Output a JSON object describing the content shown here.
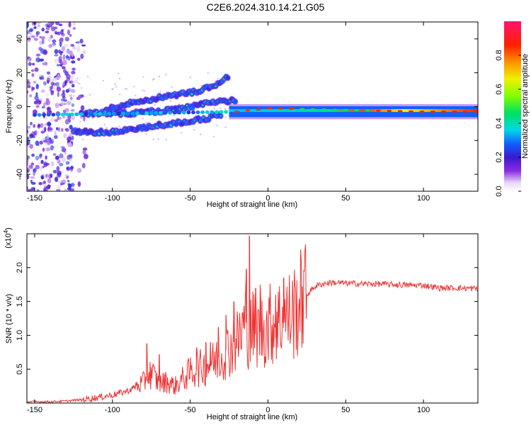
{
  "title": "C2E6.2024.310.14.21.G05",
  "chart_data": [
    {
      "type": "heatmap",
      "name": "spectrogram",
      "xlabel": "Height of straight line (km)",
      "ylabel": "Frequency (Hz)",
      "xlim": [
        -155,
        135
      ],
      "ylim": [
        -50,
        50
      ],
      "xticks": [
        -150,
        -100,
        -50,
        0,
        50,
        100
      ],
      "yticks": [
        -40,
        -20,
        0,
        20,
        40
      ],
      "colorbar": {
        "label": "Normalized spectral amplitude",
        "range": [
          0,
          1
        ],
        "ticks": [
          0.0,
          0.2,
          0.4,
          0.6,
          0.8
        ]
      },
      "features": [
        {
          "name": "noise cloud",
          "x": [
            -155,
            -125
          ],
          "y": [
            -50,
            50
          ],
          "amp": 0.1
        },
        {
          "name": "upper branch",
          "points": [
            [
              -105,
              -2
            ],
            [
              -85,
              3
            ],
            [
              -65,
              6
            ],
            [
              -45,
              9
            ],
            [
              -35,
              12
            ],
            [
              -25,
              18
            ]
          ],
          "amp": 0.35
        },
        {
          "name": "middle branch",
          "points": [
            [
              -120,
              -4
            ],
            [
              -90,
              -4
            ],
            [
              -60,
              -2
            ],
            [
              -40,
              2
            ],
            [
              -20,
              4
            ]
          ],
          "amp": 0.45
        },
        {
          "name": "lower branch",
          "points": [
            [
              -125,
              -15
            ],
            [
              -100,
              -15
            ],
            [
              -70,
              -11
            ],
            [
              -45,
              -8
            ],
            [
              -30,
              -5
            ]
          ],
          "amp": 0.35
        },
        {
          "name": "main line",
          "points": [
            [
              -155,
              -5
            ],
            [
              -20,
              -3
            ],
            [
              0,
              -1
            ],
            [
              50,
              -2
            ],
            [
              100,
              -3
            ],
            [
              135,
              -3
            ]
          ],
          "amp": 0.9
        }
      ]
    },
    {
      "type": "line",
      "name": "snr",
      "xlabel": "Height of straight line (km)",
      "ylabel": "SNR (10 * v/v)",
      "yscale_label": "(x10",
      "yscale_exp": "4",
      "color": "#ee3333",
      "xlim": [
        -155,
        135
      ],
      "ylim": [
        0,
        2.5
      ],
      "xticks": [
        -150,
        -100,
        -50,
        0,
        50,
        100
      ],
      "yticks": [
        0.5,
        1.0,
        1.5,
        2.0
      ],
      "x": [
        -155,
        -140,
        -130,
        -120,
        -110,
        -100,
        -90,
        -80,
        -75,
        -70,
        -65,
        -60,
        -55,
        -50,
        -45,
        -40,
        -35,
        -30,
        -25,
        -20,
        -16,
        -14,
        -12,
        -10,
        -5,
        0,
        5,
        10,
        15,
        20,
        25,
        30,
        35,
        40,
        50,
        60,
        70,
        80,
        90,
        100,
        110,
        120,
        135
      ],
      "values": [
        0.02,
        0.02,
        0.03,
        0.05,
        0.08,
        0.12,
        0.18,
        0.3,
        0.45,
        0.28,
        0.32,
        0.25,
        0.35,
        0.45,
        0.5,
        0.55,
        0.6,
        0.7,
        0.8,
        0.9,
        1.1,
        1.3,
        1.0,
        1.1,
        1.05,
        1.15,
        1.2,
        1.25,
        1.3,
        1.45,
        1.6,
        1.72,
        1.76,
        1.78,
        1.77,
        1.76,
        1.76,
        1.75,
        1.74,
        1.74,
        1.7,
        1.7,
        1.69
      ],
      "spikes": [
        [
          -78,
          0.88
        ],
        [
          -70,
          0.72
        ],
        [
          -46,
          0.82
        ],
        [
          -40,
          0.9
        ],
        [
          -37,
          0.9
        ],
        [
          -32,
          1.12
        ],
        [
          -27,
          1.3
        ],
        [
          -22,
          1.5
        ],
        [
          -14,
          1.98
        ],
        [
          -12,
          2.47
        ],
        [
          -8,
          1.7
        ],
        [
          -5,
          1.75
        ],
        [
          5,
          1.6
        ],
        [
          10,
          1.85
        ],
        [
          22,
          1.72
        ]
      ]
    }
  ]
}
